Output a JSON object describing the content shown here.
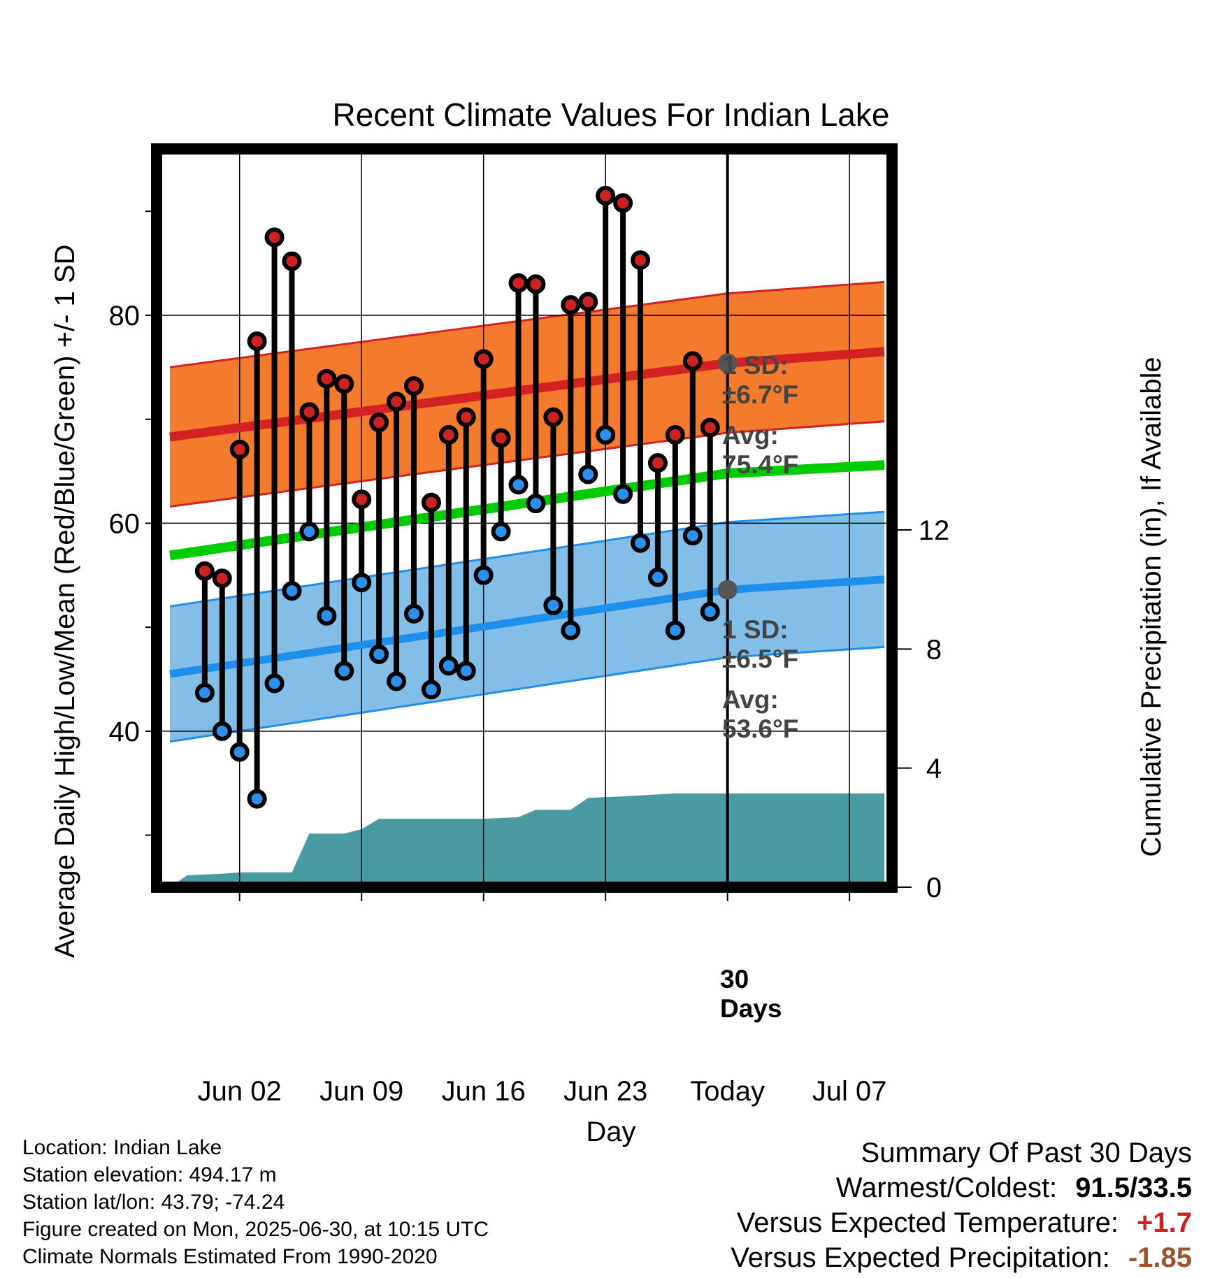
{
  "chart_data": {
    "type": "line",
    "title": "Recent Climate Values For Indian Lake",
    "xlabel": "Day",
    "ylabel_left": "Average Daily High/Low/Mean (Red/Blue/Green) +/- 1 SD",
    "ylabel_right": "Cumulative Precipitation (in), If Available",
    "x_ticks": [
      "Jun 02",
      "Jun 09",
      "Jun 16",
      "Jun 23",
      "Today",
      "Jul 07"
    ],
    "x_range": [
      "2025-05-29",
      "2025-07-09"
    ],
    "ylim": [
      25,
      96
    ],
    "ylim_right": [
      0,
      24.8
    ],
    "yticks": [
      40,
      60,
      80
    ],
    "yticks_right": [
      0,
      4,
      8,
      12
    ],
    "grid": true,
    "today": "2025-06-30",
    "highs": [
      [
        "2025-05-31",
        55.4
      ],
      [
        "2025-06-01",
        54.7
      ],
      [
        "2025-06-02",
        67.1
      ],
      [
        "2025-06-03",
        77.5
      ],
      [
        "2025-06-04",
        87.5
      ],
      [
        "2025-06-05",
        85.2
      ],
      [
        "2025-06-06",
        70.7
      ],
      [
        "2025-06-07",
        73.9
      ],
      [
        "2025-06-08",
        73.4
      ],
      [
        "2025-06-09",
        62.3
      ],
      [
        "2025-06-10",
        69.7
      ],
      [
        "2025-06-11",
        71.7
      ],
      [
        "2025-06-12",
        73.2
      ],
      [
        "2025-06-13",
        62.0
      ],
      [
        "2025-06-14",
        68.5
      ],
      [
        "2025-06-15",
        70.2
      ],
      [
        "2025-06-16",
        75.8
      ],
      [
        "2025-06-17",
        68.2
      ],
      [
        "2025-06-18",
        83.1
      ],
      [
        "2025-06-19",
        83.0
      ],
      [
        "2025-06-20",
        70.2
      ],
      [
        "2025-06-21",
        81.0
      ],
      [
        "2025-06-22",
        81.3
      ],
      [
        "2025-06-23",
        91.5
      ],
      [
        "2025-06-24",
        90.8
      ],
      [
        "2025-06-25",
        85.3
      ],
      [
        "2025-06-26",
        65.8
      ],
      [
        "2025-06-27",
        68.5
      ],
      [
        "2025-06-28",
        75.6
      ],
      [
        "2025-06-29",
        69.2
      ]
    ],
    "lows": [
      [
        "2025-05-31",
        43.7
      ],
      [
        "2025-06-01",
        40.0
      ],
      [
        "2025-06-02",
        38.0
      ],
      [
        "2025-06-03",
        33.5
      ],
      [
        "2025-06-04",
        44.6
      ],
      [
        "2025-06-05",
        53.5
      ],
      [
        "2025-06-06",
        59.2
      ],
      [
        "2025-06-07",
        51.1
      ],
      [
        "2025-06-08",
        45.8
      ],
      [
        "2025-06-09",
        54.3
      ],
      [
        "2025-06-10",
        47.4
      ],
      [
        "2025-06-11",
        44.8
      ],
      [
        "2025-06-12",
        51.3
      ],
      [
        "2025-06-13",
        44.0
      ],
      [
        "2025-06-14",
        46.3
      ],
      [
        "2025-06-15",
        45.8
      ],
      [
        "2025-06-16",
        55.0
      ],
      [
        "2025-06-17",
        59.2
      ],
      [
        "2025-06-18",
        63.7
      ],
      [
        "2025-06-19",
        61.9
      ],
      [
        "2025-06-20",
        52.1
      ],
      [
        "2025-06-21",
        49.7
      ],
      [
        "2025-06-22",
        64.7
      ],
      [
        "2025-06-23",
        68.5
      ],
      [
        "2025-06-24",
        62.8
      ],
      [
        "2025-06-25",
        58.1
      ],
      [
        "2025-06-26",
        54.8
      ],
      [
        "2025-06-27",
        49.7
      ],
      [
        "2025-06-28",
        58.8
      ],
      [
        "2025-06-29",
        51.5
      ]
    ],
    "normal_high_mean": [
      [
        "2025-05-29",
        68.3
      ],
      [
        "2025-06-30",
        75.4
      ],
      [
        "2025-07-09",
        76.5
      ]
    ],
    "normal_high_sd": 6.7,
    "normal_low_mean": [
      [
        "2025-05-29",
        45.5
      ],
      [
        "2025-06-30",
        53.6
      ],
      [
        "2025-07-09",
        54.6
      ]
    ],
    "normal_low_sd": 6.5,
    "normal_mean": [
      [
        "2025-05-29",
        56.9
      ],
      [
        "2025-06-30",
        64.8
      ],
      [
        "2025-07-09",
        65.6
      ]
    ],
    "cumulative_precip": [
      [
        "2025-05-29",
        0.0
      ],
      [
        "2025-05-30",
        0.4
      ],
      [
        "2025-06-01",
        0.45
      ],
      [
        "2025-06-02",
        0.5
      ],
      [
        "2025-06-05",
        0.5
      ],
      [
        "2025-06-06",
        1.8
      ],
      [
        "2025-06-08",
        1.8
      ],
      [
        "2025-06-09",
        1.95
      ],
      [
        "2025-06-10",
        2.3
      ],
      [
        "2025-06-16",
        2.3
      ],
      [
        "2025-06-18",
        2.35
      ],
      [
        "2025-06-19",
        2.6
      ],
      [
        "2025-06-21",
        2.6
      ],
      [
        "2025-06-22",
        3.0
      ],
      [
        "2025-06-24",
        3.05
      ],
      [
        "2025-06-27",
        3.15
      ],
      [
        "2025-07-09",
        3.15
      ]
    ],
    "annotations": {
      "high_sd": [
        "1 SD:",
        "±6.7°F"
      ],
      "high_avg": [
        "Avg:",
        "75.4°F"
      ],
      "low_sd": [
        "1 SD:",
        "±6.5°F"
      ],
      "low_avg": [
        "Avg:",
        "53.6°F"
      ],
      "days": [
        "30",
        "Days"
      ]
    },
    "colors": {
      "high_band": "#F47A2D",
      "high_line": "#D42222",
      "low_band": "#82BEE8",
      "low_line": "#1E8FEA",
      "mean_line": "#00CC00",
      "precip": "#4A9AA2",
      "high_marker": "#CC2222",
      "low_marker": "#2B8FEB",
      "avg_marker": "#555555"
    }
  },
  "info": {
    "location": "Location: Indian Lake",
    "elevation": "Station elevation: 494.17 m",
    "latlon": "Station lat/lon: 43.79; -74.24",
    "created": "Figure created on Mon, 2025-06-30, at 10:15 UTC",
    "normals": "Climate Normals Estimated From 1990-2020"
  },
  "summary": {
    "heading": "Summary Of Past 30 Days",
    "warmest_label": "Warmest/Coldest:",
    "warmest_value": "91.5/33.5",
    "temp_label": "Versus Expected Temperature:",
    "temp_value": "+1.7",
    "temp_color": "#CC2222",
    "precip_label": "Versus Expected Precipitation:",
    "precip_value": "-1.85",
    "precip_color": "#A0522D"
  }
}
